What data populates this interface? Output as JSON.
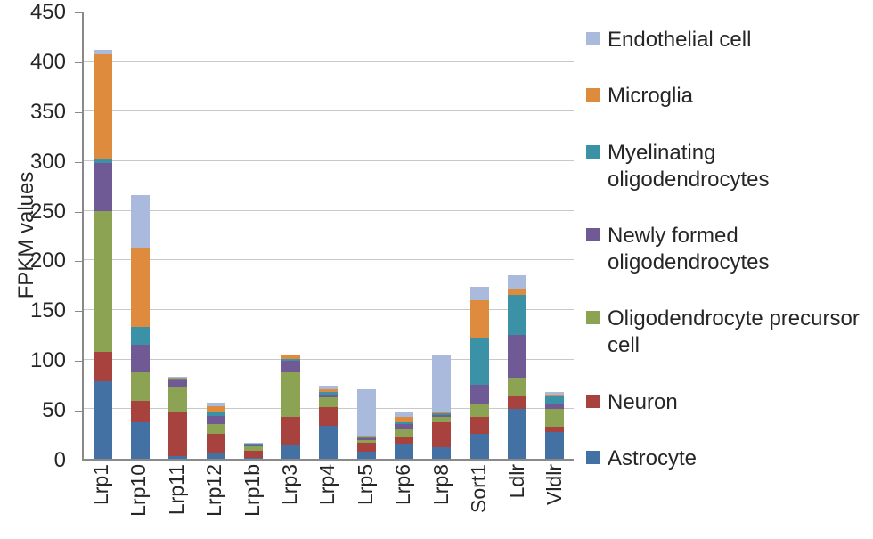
{
  "chart_data": {
    "type": "bar",
    "stacked": true,
    "title": "",
    "xlabel": "",
    "ylabel": "FPKM values",
    "ylim": [
      0,
      450
    ],
    "ytick_step": 50,
    "grid": true,
    "legend_position": "right",
    "categories": [
      "Lrp1",
      "Lrp10",
      "Lrp11",
      "Lrp12",
      "Lrp1b",
      "Lrp3",
      "Lrp4",
      "Lrp5",
      "Lrp6",
      "Lrp8",
      "Sort1",
      "Ldlr",
      "Vldlr"
    ],
    "series": [
      {
        "name": "Astrocyte",
        "color": "#4471a4",
        "values": [
          78,
          37,
          3,
          5,
          1,
          14,
          33,
          7,
          15,
          12,
          25,
          50,
          27
        ]
      },
      {
        "name": "Neuron",
        "color": "#a8423e",
        "values": [
          30,
          21,
          44,
          20,
          7,
          28,
          19,
          9,
          7,
          25,
          17,
          13,
          5
        ]
      },
      {
        "name": "Oligodendrocyte precursor cell",
        "color": "#8ba353",
        "values": [
          142,
          30,
          26,
          10,
          5,
          46,
          10,
          3,
          8,
          5,
          13,
          19,
          18
        ]
      },
      {
        "name": "Newly formed oligodendrocytes",
        "color": "#6f5a95",
        "values": [
          48,
          27,
          6,
          8,
          1,
          11,
          3,
          2,
          5,
          2,
          20,
          43,
          5
        ]
      },
      {
        "name": "Myelinating oligodendrocytes",
        "color": "#3b91a6",
        "values": [
          4,
          18,
          2,
          4,
          1,
          2,
          2,
          1,
          2,
          2,
          47,
          40,
          8
        ]
      },
      {
        "name": "Microglia",
        "color": "#df8b3d",
        "values": [
          106,
          80,
          1,
          6,
          0.5,
          3,
          3,
          1,
          5,
          1,
          38,
          7,
          2
        ]
      },
      {
        "name": "Endothelial cell",
        "color": "#a9badd",
        "values": [
          4,
          53,
          1,
          4,
          0.5,
          1,
          4,
          47,
          6,
          57,
          13,
          13,
          2
        ]
      }
    ],
    "legend": [
      "Endothelial cell",
      "Microglia",
      "Myelinating oligodendrocytes",
      "Newly formed oligodendrocytes",
      "Oligodendrocyte precursor cell",
      "Neuron",
      "Astrocyte"
    ]
  }
}
